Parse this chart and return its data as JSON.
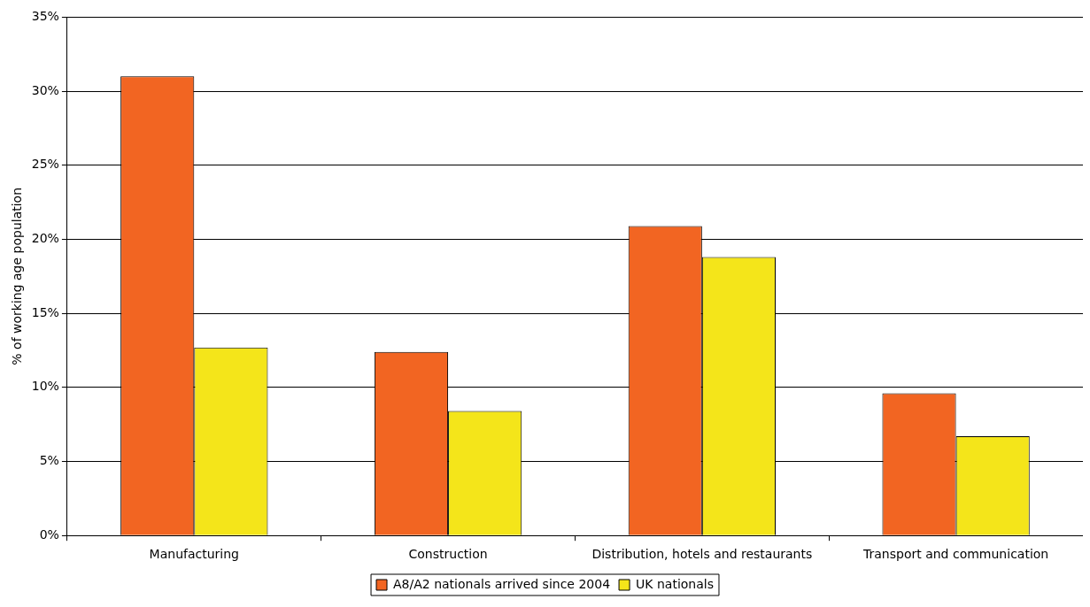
{
  "chart_data": {
    "type": "bar",
    "ylabel": "% of working age population",
    "categories": [
      "Manufacturing",
      "Construction",
      "Distribution, hotels and restaurants",
      "Transport and communication"
    ],
    "series": [
      {
        "name": "A8/A2 nationals arrived since 2004",
        "color": "#f26522",
        "values": [
          31.0,
          12.4,
          20.9,
          9.6
        ]
      },
      {
        "name": "UK nationals",
        "color": "#f4e51a",
        "values": [
          12.7,
          8.4,
          18.8,
          6.7
        ]
      }
    ],
    "ylim": [
      0,
      35
    ],
    "yticks": [
      {
        "value": 0,
        "label": "0%"
      },
      {
        "value": 5,
        "label": "5%"
      },
      {
        "value": 10,
        "label": "10%"
      },
      {
        "value": 15,
        "label": "15%"
      },
      {
        "value": 20,
        "label": "20%"
      },
      {
        "value": 25,
        "label": "25%"
      },
      {
        "value": 30,
        "label": "30%"
      },
      {
        "value": 35,
        "label": "35%"
      }
    ],
    "grid": "y",
    "legend": "bottom"
  }
}
